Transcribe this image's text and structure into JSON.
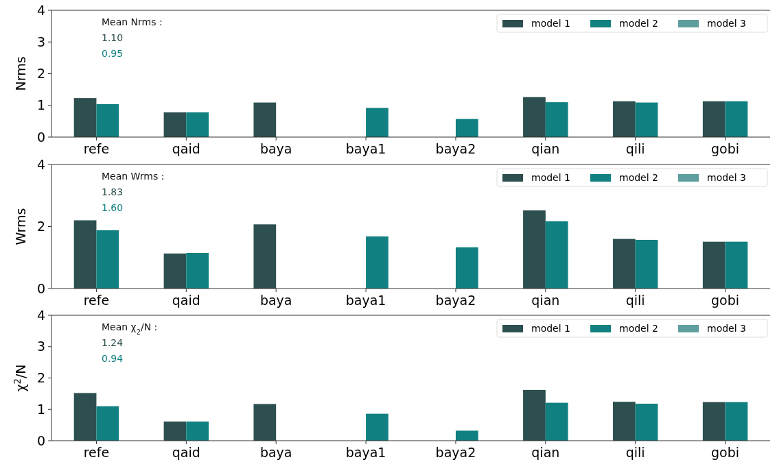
{
  "chart_data": [
    {
      "type": "bar",
      "ylabel": "Nrms",
      "categories": [
        "refe",
        "qaid",
        "baya",
        "baya1",
        "baya2",
        "qian",
        "qili",
        "gobi"
      ],
      "ylim": [
        0,
        4
      ],
      "yticks": [
        0,
        1,
        2,
        3,
        4
      ],
      "legend": "top right",
      "annotations": [
        "Mean Nrms :",
        "1.10",
        "0.95"
      ],
      "series": [
        {
          "name": "model 1",
          "color": "#2d4f4f",
          "values": [
            1.23,
            0.78,
            1.09,
            null,
            null,
            1.26,
            1.13,
            1.13
          ]
        },
        {
          "name": "model 2",
          "color": "#108080",
          "values": [
            1.04,
            0.78,
            null,
            0.92,
            0.57,
            1.1,
            1.09,
            1.13
          ]
        },
        {
          "name": "model 3",
          "color": "#5f9e9e",
          "values": [
            null,
            null,
            null,
            null,
            null,
            null,
            null,
            null
          ]
        }
      ]
    },
    {
      "type": "bar",
      "ylabel": "Wrms",
      "categories": [
        "refe",
        "qaid",
        "baya",
        "baya1",
        "baya2",
        "qian",
        "qili",
        "gobi"
      ],
      "ylim": [
        0,
        4
      ],
      "yticks": [
        0,
        2,
        4
      ],
      "legend": "top right",
      "annotations": [
        "Mean Wrms :",
        "1.83",
        "1.60"
      ],
      "series": [
        {
          "name": "model 1",
          "color": "#2d4f4f",
          "values": [
            2.2,
            1.13,
            2.07,
            null,
            null,
            2.52,
            1.6,
            1.51
          ]
        },
        {
          "name": "model 2",
          "color": "#108080",
          "values": [
            1.88,
            1.15,
            null,
            1.68,
            1.33,
            2.17,
            1.57,
            1.51
          ]
        },
        {
          "name": "model 3",
          "color": "#5f9e9e",
          "values": [
            null,
            null,
            null,
            null,
            null,
            null,
            null,
            null
          ]
        }
      ]
    },
    {
      "type": "bar",
      "ylabel": "χ$^{2}$/N",
      "categories": [
        "refe",
        "qaid",
        "baya",
        "baya1",
        "baya2",
        "qian",
        "qili",
        "gobi"
      ],
      "ylim": [
        0,
        4
      ],
      "yticks": [
        0,
        1,
        2,
        3,
        4
      ],
      "legend": "top right",
      "annotations": [
        "Mean χ$_{2}$/N :",
        "1.24",
        "0.94"
      ],
      "series": [
        {
          "name": "model 1",
          "color": "#2d4f4f",
          "values": [
            1.52,
            0.61,
            1.17,
            null,
            null,
            1.62,
            1.24,
            1.23
          ]
        },
        {
          "name": "model 2",
          "color": "#108080",
          "values": [
            1.1,
            0.61,
            null,
            0.86,
            0.32,
            1.21,
            1.18,
            1.23
          ]
        },
        {
          "name": "model 3",
          "color": "#5f9e9e",
          "values": [
            null,
            null,
            null,
            null,
            null,
            null,
            null,
            null
          ]
        }
      ]
    }
  ]
}
